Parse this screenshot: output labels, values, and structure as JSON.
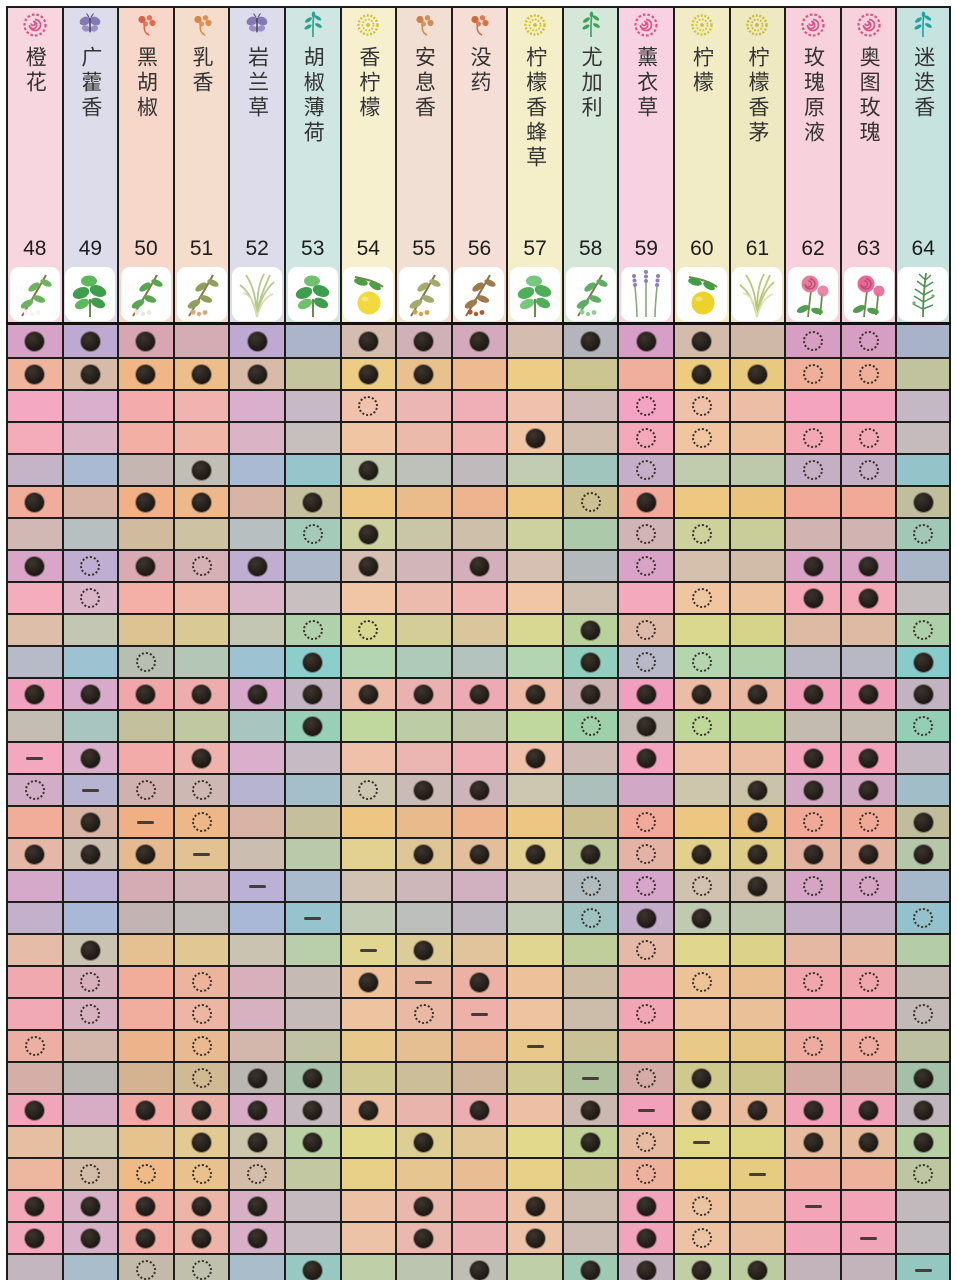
{
  "page": {
    "description": "Essential-oil blending reference chart, oils numbered 48-64, with compatibility mark matrix",
    "mark_legend": {
      "F": "filled-dot",
      "D": "dotted-circle",
      "-": "dash (same oil / diagonal)",
      ".": "empty"
    }
  },
  "style": {
    "grid_line": "#1f1c1c",
    "mark_dark": "#241e19",
    "page_bg": "#ffffff",
    "illus_box_bg": "#ffffff",
    "name_text": "#333333",
    "number_text": "#1d1d1d",
    "row_tints": [
      "#b88cc4",
      "#eeb066",
      "#f598ba",
      "#f5a0a8",
      "#8fb0c6",
      "#f0a465",
      "#a9bb9e",
      "#bb95c5",
      "#f5a3ac",
      "#c3c980",
      "#72c3c6",
      "#ef8cb2",
      "#8cc79a",
      "#f398b6",
      "#aaa3c2",
      "#efa263",
      "#d6b97c",
      "#b29aca",
      "#8cabcc",
      "#d5c47e",
      "#ef9a92",
      "#ef9d9d",
      "#e6a972",
      "#b0a87e",
      "#ee93aa",
      "#d7cb74",
      "#e7b76c",
      "#ef9aa9",
      "#ef9bae",
      "#8bb8b2"
    ]
  },
  "chart_data": {
    "type": "heatmap",
    "title": "",
    "columns": [
      {
        "number": "48",
        "name": "橙花",
        "icon": "rose",
        "icon_color": "#d9538b",
        "header_bg": "#f8d6e0",
        "hue": "#f0a8c0",
        "plant": {
          "form": "branch",
          "leaf": "#6db25f",
          "accent": "#f3f3ef"
        }
      },
      {
        "number": "49",
        "name": "广藿香",
        "icon": "butterfly",
        "icon_color": "#8677b5",
        "header_bg": "#dcdcea",
        "hue": "#b8b8d8",
        "plant": {
          "form": "bush",
          "leaf": "#3f9e4d",
          "accent": "#5cb85c"
        }
      },
      {
        "number": "50",
        "name": "黑胡椒",
        "icon": "posy",
        "icon_color": "#dd5f45",
        "header_bg": "#f7d7ca",
        "hue": "#f0b090",
        "plant": {
          "form": "branch",
          "leaf": "#56a74f",
          "accent": "#e9e9df"
        }
      },
      {
        "number": "51",
        "name": "乳香",
        "icon": "posy",
        "icon_color": "#dd8440",
        "header_bg": "#f4ddcc",
        "hue": "#e8c098",
        "plant": {
          "form": "branch",
          "leaf": "#8fa05c",
          "accent": "#d9a77a"
        }
      },
      {
        "number": "52",
        "name": "岩兰草",
        "icon": "butterfly",
        "icon_color": "#8677b5",
        "header_bg": "#dcdcea",
        "hue": "#b8b8d8",
        "plant": {
          "form": "grass",
          "leaf": "#b5c98b",
          "accent": "#d5e0b0"
        }
      },
      {
        "number": "53",
        "name": "胡椒薄荷",
        "icon": "sprig",
        "icon_color": "#2ba08a",
        "header_bg": "#cfe6e3",
        "hue": "#90d0c8",
        "plant": {
          "form": "bush",
          "leaf": "#3f9e4d",
          "accent": "#70c070"
        }
      },
      {
        "number": "54",
        "name": "香柠檬",
        "icon": "pom",
        "icon_color": "#cfc22e",
        "header_bg": "#f7f0cf",
        "hue": "#e8e090",
        "plant": {
          "form": "fruit",
          "leaf": "#4f9e43",
          "accent": "#f2d93e"
        }
      },
      {
        "number": "55",
        "name": "安息香",
        "icon": "posy",
        "icon_color": "#cf8148",
        "header_bg": "#f1dfd3",
        "hue": "#e0c8a0",
        "plant": {
          "form": "branch",
          "leaf": "#a3ad6b",
          "accent": "#cfa34e"
        }
      },
      {
        "number": "56",
        "name": "没药",
        "icon": "posy",
        "icon_color": "#d06a3c",
        "header_bg": "#f4ded6",
        "hue": "#e8b8a8",
        "plant": {
          "form": "branch",
          "leaf": "#9c7a4e",
          "accent": "#b35633"
        }
      },
      {
        "number": "57",
        "name": "柠檬香蜂草",
        "icon": "pom",
        "icon_color": "#cfc22e",
        "header_bg": "#f4eec9",
        "hue": "#e8e090",
        "plant": {
          "form": "bush",
          "leaf": "#4fae57",
          "accent": "#77c77e"
        }
      },
      {
        "number": "58",
        "name": "尤加利",
        "icon": "sprig",
        "icon_color": "#3da05c",
        "header_bg": "#d5e7d8",
        "hue": "#a0d0a8",
        "plant": {
          "form": "branch",
          "leaf": "#5fae68",
          "accent": "#8fcf96"
        }
      },
      {
        "number": "59",
        "name": "薰衣草",
        "icon": "rose",
        "icon_color": "#e0558c",
        "header_bg": "#f8d2e0",
        "hue": "#f0a0c0",
        "plant": {
          "form": "spike",
          "leaf": "#8ba97e",
          "accent": "#8f7fc0"
        }
      },
      {
        "number": "60",
        "name": "柠檬",
        "icon": "pom",
        "icon_color": "#cfc52c",
        "header_bg": "#f2ecc6",
        "hue": "#e8e088",
        "plant": {
          "form": "fruit",
          "leaf": "#3f9e43",
          "accent": "#ecd22a"
        }
      },
      {
        "number": "61",
        "name": "柠檬香茅",
        "icon": "pom",
        "icon_color": "#c6bd32",
        "header_bg": "#efe9c1",
        "hue": "#e0d880",
        "plant": {
          "form": "grass",
          "leaf": "#bcc878",
          "accent": "#dce4ad"
        }
      },
      {
        "number": "62",
        "name": "玫瑰原液",
        "icon": "rose",
        "icon_color": "#d9538b",
        "header_bg": "#f7d1db",
        "hue": "#f0a0b8",
        "plant": {
          "form": "rose",
          "leaf": "#4f9e4c",
          "accent": "#e77b9d"
        }
      },
      {
        "number": "63",
        "name": "奥图玫瑰",
        "icon": "rose",
        "icon_color": "#d9538b",
        "header_bg": "#f7d1db",
        "hue": "#f0a0b8",
        "plant": {
          "form": "rose",
          "leaf": "#4f9e4c",
          "accent": "#e76796"
        }
      },
      {
        "number": "64",
        "name": "迷迭香",
        "icon": "sprig",
        "icon_color": "#1fa3a0",
        "header_bg": "#c6e3df",
        "hue": "#88ccc4",
        "plant": {
          "form": "needle",
          "leaf": "#4b9356",
          "accent": "#6fae77"
        }
      }
    ],
    "row_marks": [
      "FFF.F.FFF.FFF.DD.",
      "FFFFF.FF....FFDD.",
      "......D....DD....",
      ".........F.DD.DD.",
      "...F..F....D..DD.",
      "F.FF.F....DF....F",
      ".....DF....DD...D",
      "FDFDF.F.F..D..FF.",
      ".D..........D.FF.",
      ".....DD...FD....D",
      "..D..F....FDD...F",
      "FFFFFFFFFFFFFFFFF",
      ".....F....DFD...D",
      "-F.F.....F.F..FF.",
      "D-DD..DFF....FFF.",
      ".F-D.......D.FDDF",
      "FFF-...FFFFDFFFFF",
      "....-.....DDDFDD.",
      ".....-....DFF...D",
      ".F....-F...D.....",
      ".D.D..F-F...D.DD.",
      ".D.D...D-..D....D",
      "D..D.....-....DD.",
      "...DFF....-DF...F",
      "F.FFFFF.F.F-FFFFF",
      "...FFF.F..FD-.FFF",
      ".DDDD......D.-..D",
      "FFFFF..F.F.FD.-..",
      "FFFFF..F.F.FD..-.",
      "..DD.F..F.FFFF..-"
    ]
  }
}
